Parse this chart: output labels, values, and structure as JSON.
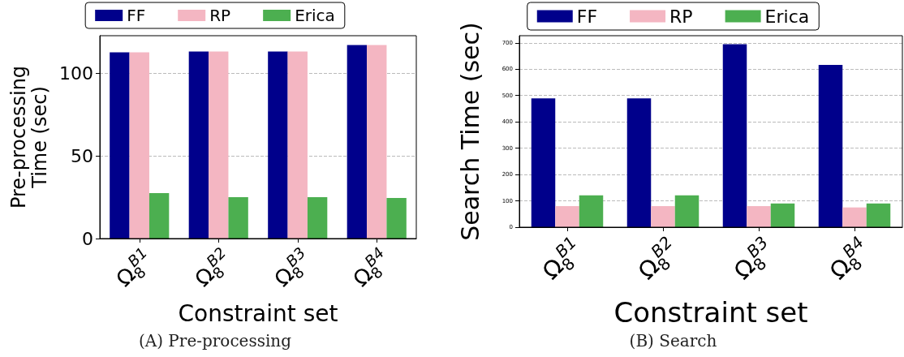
{
  "chart_data": [
    {
      "type": "bar",
      "xlabel": "Constraint set",
      "ylabel": "Pre-processing\nTime (sec)",
      "categories": [
        "Ω$_{8}$$^{B1}$",
        "Ω$_{8}$$^{B2}$",
        "Ω$_{8}$$^{B3}$",
        "Ω$_{8}$$^{B4}$"
      ],
      "series": [
        {
          "name": "FF",
          "color": "#00008b",
          "values": [
            112.5,
            113,
            113,
            117
          ]
        },
        {
          "name": "RP",
          "color": "#f4b6c2",
          "values": [
            112.5,
            113,
            113,
            117
          ]
        },
        {
          "name": "Erica",
          "color": "#4caf50",
          "values": [
            27.5,
            25,
            25,
            24.5
          ]
        }
      ],
      "ylim": [
        0,
        122.6
      ],
      "yticks": [
        0,
        50,
        100
      ],
      "grid": "y",
      "legend": "top",
      "annotations": [
        "(A) Pre-processing"
      ]
    },
    {
      "type": "bar",
      "xlabel": "Constraint set",
      "ylabel": "Search Time (sec)",
      "categories": [
        "Ω$_{8}$$^{B1}$",
        "Ω$_{8}$$^{B2}$",
        "Ω$_{8}$$^{B3}$",
        "Ω$_{8}$$^{B4}$"
      ],
      "series": [
        {
          "name": "FF",
          "color": "#00008b",
          "values": [
            489,
            489,
            695,
            616
          ]
        },
        {
          "name": "RP",
          "color": "#f4b6c2",
          "values": [
            80,
            80,
            80,
            75
          ]
        },
        {
          "name": "Erica",
          "color": "#4caf50",
          "values": [
            121,
            121,
            90,
            90
          ]
        }
      ],
      "ylim": [
        0,
        727
      ],
      "yticks": [
        0,
        100,
        200,
        300,
        400,
        500,
        600,
        700
      ],
      "grid": "y",
      "legend": "top",
      "annotations": [
        "(B) Search"
      ]
    }
  ]
}
